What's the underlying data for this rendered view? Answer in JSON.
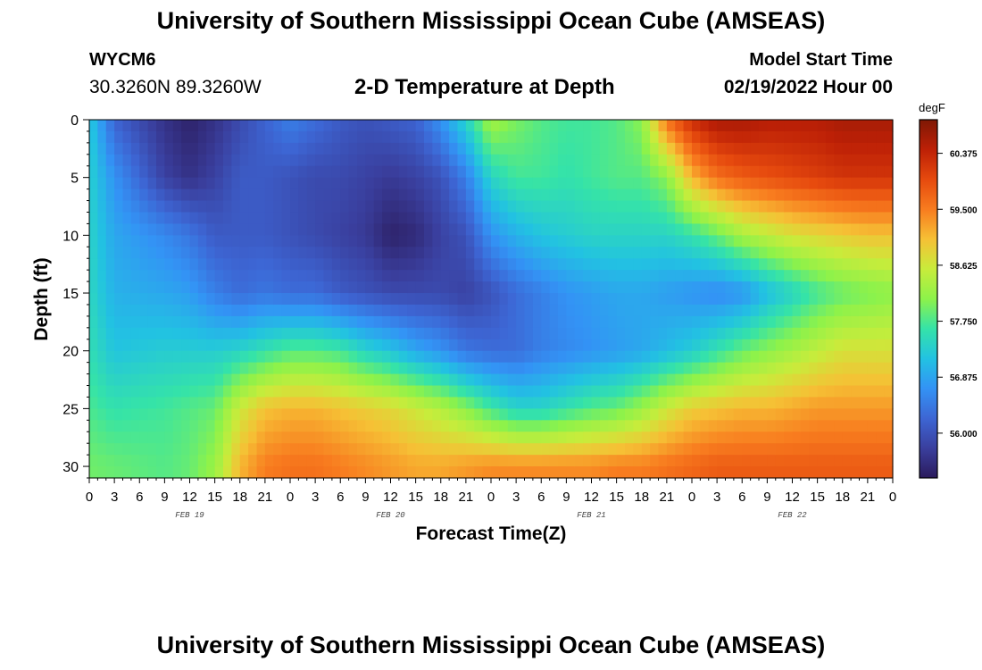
{
  "title": "University of Southern Mississippi Ocean Cube (AMSEAS)",
  "footer_title": "University of Southern Mississippi Ocean Cube (AMSEAS)",
  "station": {
    "id": "WYCM6",
    "coordinates": "30.3260N  89.3260W"
  },
  "model": {
    "label": "Model Start Time",
    "value": "02/19/2022 Hour 00"
  },
  "chart_data": {
    "type": "heatmap",
    "title": "2-D Temperature at Depth",
    "xlabel": "Forecast Time(Z)",
    "ylabel": "Depth (ft)",
    "colorbar_unit": "degF",
    "x_range_hours": [
      0,
      96
    ],
    "y_range_ft": [
      0,
      31
    ],
    "x_tick_labels": [
      "0",
      "3",
      "6",
      "9",
      "12",
      "15",
      "18",
      "21",
      "0",
      "3",
      "6",
      "9",
      "12",
      "15",
      "18",
      "21",
      "0",
      "3",
      "6",
      "9",
      "12",
      "15",
      "18",
      "21",
      "0",
      "3",
      "6",
      "9",
      "12",
      "15",
      "18",
      "21",
      "0"
    ],
    "y_tick_labels": [
      "0",
      "5",
      "10",
      "15",
      "20",
      "25",
      "30"
    ],
    "date_labels": [
      "FEB 19",
      "FEB 20",
      "FEB 21",
      "FEB 22"
    ],
    "colorbar_ticks": [
      "60.375",
      "59.500",
      "58.625",
      "57.750",
      "56.875",
      "56.000"
    ],
    "color_range_degF": [
      55.3,
      60.9
    ],
    "color_stops": [
      "#2b1b5c",
      "#3a3f9e",
      "#3d66d4",
      "#3393f5",
      "#22c2e2",
      "#35e3a8",
      "#8df24a",
      "#c8ec3b",
      "#f6c035",
      "#f87c1f",
      "#e64a0e",
      "#bd2006",
      "#7f1805"
    ],
    "profile_hours": [
      0,
      3,
      9,
      12,
      15,
      18,
      21,
      24,
      27,
      30,
      33,
      36,
      39,
      42,
      45,
      48,
      51,
      54,
      57,
      60,
      63,
      66,
      69,
      72,
      75,
      78,
      81,
      84,
      87,
      90,
      93,
      96
    ],
    "profile_depths_ft": [
      0,
      5,
      10,
      15,
      20,
      25,
      30
    ],
    "temperature_degF": [
      [
        57.3,
        57.35,
        57.4,
        57.45,
        57.55,
        57.75,
        57.95
      ],
      [
        56.2,
        56.7,
        56.9,
        57.0,
        57.2,
        57.6,
        57.9
      ],
      [
        55.6,
        55.8,
        56.6,
        56.9,
        57.3,
        57.7,
        57.8
      ],
      [
        55.4,
        55.6,
        56.4,
        56.8,
        57.3,
        57.8,
        57.9
      ],
      [
        55.6,
        55.8,
        56.1,
        56.5,
        57.3,
        57.9,
        58.2
      ],
      [
        55.9,
        56.1,
        56.1,
        56.3,
        57.4,
        58.6,
        59.1
      ],
      [
        56.2,
        56.1,
        56.1,
        56.4,
        57.6,
        59.0,
        59.5
      ],
      [
        56.5,
        56.0,
        56.0,
        56.3,
        57.8,
        59.1,
        59.6
      ],
      [
        56.3,
        55.9,
        55.9,
        56.3,
        57.8,
        59.1,
        59.6
      ],
      [
        56.1,
        55.9,
        55.8,
        56.1,
        57.7,
        59.0,
        59.5
      ],
      [
        56.0,
        55.8,
        55.7,
        56.0,
        57.4,
        58.9,
        59.4
      ],
      [
        56.1,
        55.7,
        55.4,
        55.9,
        57.2,
        58.8,
        59.3
      ],
      [
        56.2,
        55.8,
        55.5,
        55.9,
        56.9,
        58.6,
        59.2
      ],
      [
        56.7,
        56.0,
        55.8,
        55.9,
        56.7,
        58.4,
        59.2
      ],
      [
        57.4,
        56.5,
        56.0,
        55.8,
        56.4,
        58.1,
        59.3
      ],
      [
        58.3,
        57.4,
        56.7,
        56.0,
        56.3,
        57.7,
        59.4
      ],
      [
        58.0,
        57.7,
        57.0,
        56.3,
        56.3,
        57.4,
        59.4
      ],
      [
        57.8,
        57.7,
        57.2,
        56.5,
        56.5,
        57.4,
        59.4
      ],
      [
        57.7,
        57.6,
        57.3,
        56.7,
        56.6,
        57.6,
        59.4
      ],
      [
        57.7,
        57.7,
        57.4,
        56.8,
        56.7,
        57.8,
        59.4
      ],
      [
        57.8,
        57.8,
        57.4,
        56.9,
        56.8,
        57.9,
        59.5
      ],
      [
        58.1,
        57.8,
        57.4,
        56.9,
        56.9,
        58.2,
        59.5
      ],
      [
        59.6,
        58.1,
        57.4,
        56.8,
        57.1,
        58.6,
        59.6
      ],
      [
        60.3,
        59.1,
        57.6,
        56.7,
        57.3,
        58.9,
        59.7
      ],
      [
        60.6,
        59.6,
        57.9,
        56.6,
        57.6,
        59.0,
        59.8
      ],
      [
        60.6,
        59.8,
        58.3,
        56.7,
        57.9,
        59.1,
        59.8
      ],
      [
        60.5,
        59.9,
        58.5,
        57.1,
        58.1,
        59.1,
        59.8
      ],
      [
        60.5,
        60.0,
        58.7,
        57.4,
        58.3,
        59.2,
        59.8
      ],
      [
        60.5,
        60.1,
        58.8,
        57.7,
        58.5,
        59.3,
        59.8
      ],
      [
        60.6,
        60.2,
        58.9,
        57.9,
        58.7,
        59.3,
        59.8
      ],
      [
        60.6,
        60.2,
        59.0,
        58.0,
        58.7,
        59.3,
        59.8
      ],
      [
        60.6,
        60.2,
        59.0,
        58.1,
        58.7,
        59.3,
        59.8
      ]
    ]
  }
}
